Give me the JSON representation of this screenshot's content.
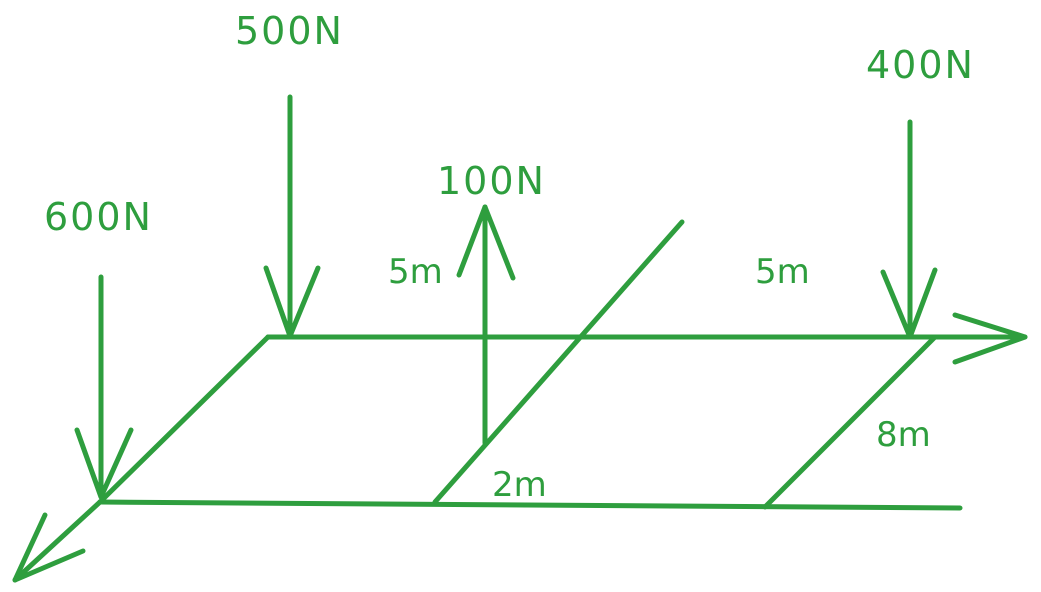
{
  "diagram": {
    "color": "#2e9e3e",
    "forces": {
      "f600": "600N",
      "f500": "500N",
      "f100": "100N",
      "f400": "400N"
    },
    "dimensions": {
      "d5m_left": "5m",
      "d5m_right": "5m",
      "d8m": "8m",
      "d2m": "2m"
    }
  }
}
